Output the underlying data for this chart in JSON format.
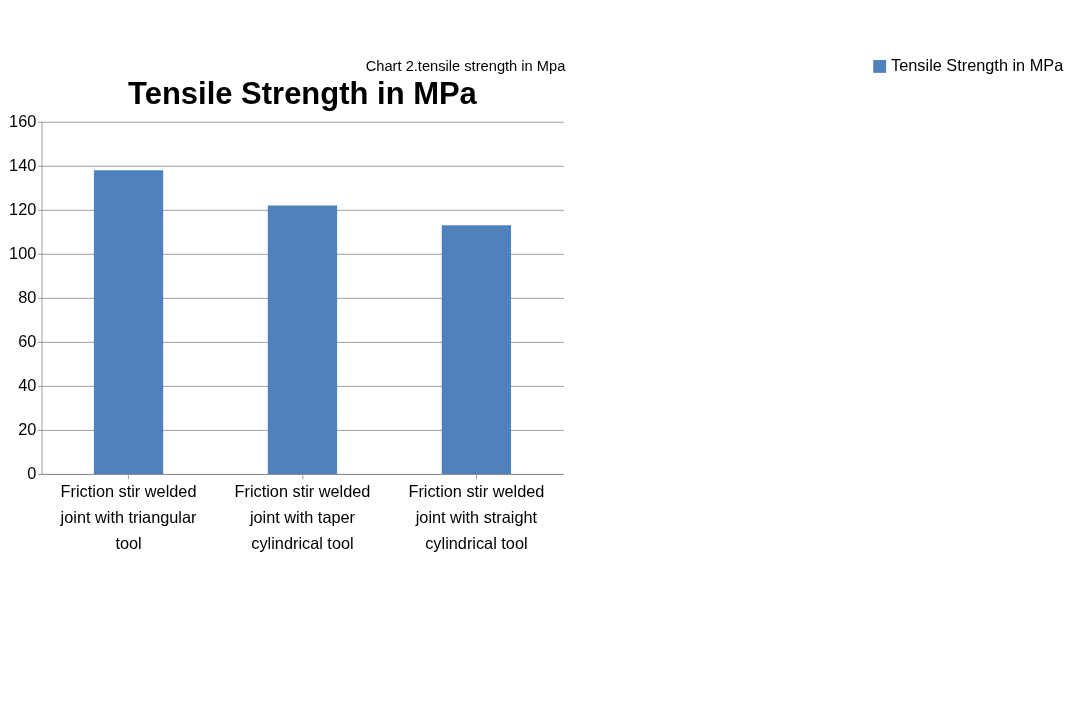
{
  "chart_data": {
    "type": "bar",
    "title": "Tensile Strength in MPa",
    "annotations": [
      "Chart 2.tensile  strength in Mpa"
    ],
    "categories": [
      "Friction stir welded joint with triangular tool",
      "Friction stir welded joint  with taper cylindrical  tool",
      "Friction stir welded joint    with straight cylindrical tool"
    ],
    "series": [
      {
        "name": "Tensile Strength in MPa",
        "color": "#4f81bd",
        "values": [
          138,
          122,
          113
        ]
      }
    ],
    "ylim": [
      0,
      160
    ],
    "yticks": [
      0,
      20,
      40,
      60,
      80,
      100,
      120,
      140,
      160
    ],
    "grid": "y",
    "legend": "right"
  }
}
